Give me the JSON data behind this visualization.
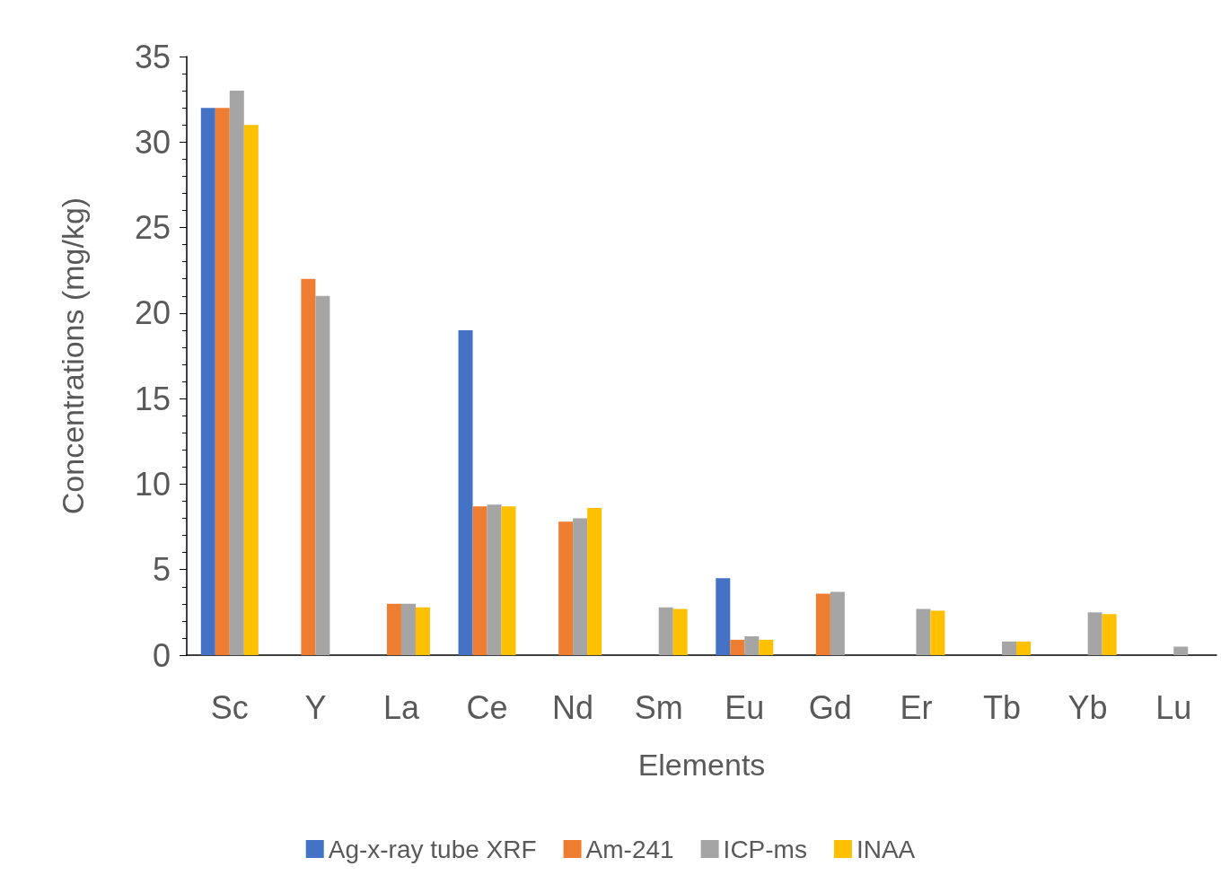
{
  "chart_data": {
    "type": "bar",
    "xlabel": "Elements",
    "ylabel": "Concentrations (mg/kg)",
    "categories": [
      "Sc",
      "Y",
      "La",
      "Ce",
      "Nd",
      "Sm",
      "Eu",
      "Gd",
      "Er",
      "Tb",
      "Yb",
      "Lu"
    ],
    "series": [
      {
        "name": "Ag-x-ray tube XRF",
        "color": "#4472c4",
        "values": [
          32,
          null,
          null,
          19,
          null,
          null,
          4.5,
          null,
          null,
          null,
          null,
          null
        ]
      },
      {
        "name": "Am-241",
        "color": "#ed7d31",
        "values": [
          32,
          22,
          3.0,
          8.7,
          7.8,
          null,
          0.9,
          3.6,
          null,
          null,
          null,
          null
        ]
      },
      {
        "name": "ICP-ms",
        "color": "#a5a5a5",
        "values": [
          33,
          21,
          3.0,
          8.8,
          8.0,
          2.8,
          1.1,
          3.7,
          2.7,
          0.8,
          2.5,
          0.5
        ]
      },
      {
        "name": "INAA",
        "color": "#ffc000",
        "values": [
          31,
          null,
          2.8,
          8.7,
          8.6,
          2.7,
          0.9,
          null,
          2.6,
          0.8,
          2.4,
          null
        ]
      }
    ],
    "ylim": [
      0,
      35
    ],
    "yticks": [
      0,
      5,
      10,
      15,
      20,
      25,
      30,
      35
    ],
    "grid": false,
    "legend": "bottom"
  }
}
